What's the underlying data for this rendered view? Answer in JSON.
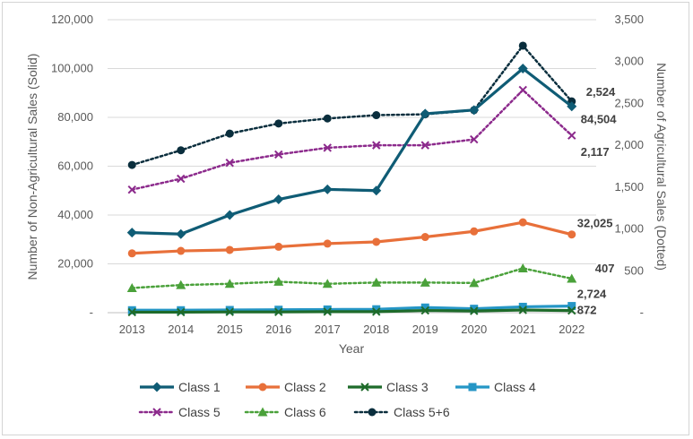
{
  "chart_data": {
    "type": "line",
    "title": "",
    "xlabel": "Year",
    "ylabel_left": "Number of Non-Agricultural Sales (Solid)",
    "ylabel_right": "Number of Agricultural Sales (Dotted)",
    "x": [
      2013,
      2014,
      2015,
      2016,
      2017,
      2018,
      2019,
      2020,
      2021,
      2022
    ],
    "ylim_left": [
      0,
      120000
    ],
    "ylim_right": [
      0,
      3500
    ],
    "left_ticks": [
      "-",
      "20,000",
      "40,000",
      "60,000",
      "80,000",
      "100,000",
      "120,000"
    ],
    "right_ticks": [
      "-",
      "500",
      "1,000",
      "1,500",
      "2,000",
      "2,500",
      "3,000",
      "3,500"
    ],
    "grid": true,
    "legend_position": "bottom",
    "series": [
      {
        "name": "Class 1",
        "axis": "left",
        "style": "solid",
        "marker": "diamond",
        "color": "#0f5c75",
        "values": [
          32800,
          32200,
          40000,
          46400,
          50500,
          50000,
          81500,
          83000,
          100000,
          84504
        ]
      },
      {
        "name": "Class 2",
        "axis": "left",
        "style": "solid",
        "marker": "circle",
        "color": "#e8703a",
        "values": [
          24300,
          25300,
          25700,
          27000,
          28300,
          29000,
          31000,
          33300,
          37000,
          32025
        ]
      },
      {
        "name": "Class 3",
        "axis": "left",
        "style": "solid",
        "marker": "x",
        "color": "#1e6b2a",
        "values": [
          200,
          200,
          300,
          300,
          400,
          400,
          900,
          700,
          1100,
          872
        ]
      },
      {
        "name": "Class 4",
        "axis": "left",
        "style": "solid",
        "marker": "square",
        "color": "#2596c6",
        "values": [
          1000,
          1000,
          1100,
          1200,
          1300,
          1400,
          2100,
          1600,
          2400,
          2724
        ]
      },
      {
        "name": "Class 5",
        "axis": "right",
        "style": "dotted",
        "marker": "x",
        "color": "#8c2a8c",
        "values": [
          1470,
          1600,
          1790,
          1890,
          1970,
          2000,
          2000,
          2070,
          2660,
          2117
        ]
      },
      {
        "name": "Class 6",
        "axis": "right",
        "style": "dotted",
        "marker": "triangle",
        "color": "#4aa13a",
        "values": [
          295,
          330,
          345,
          370,
          345,
          360,
          360,
          355,
          530,
          407
        ]
      },
      {
        "name": "Class 5+6",
        "axis": "right",
        "style": "dotted",
        "marker": "circle",
        "color": "#0a2e3d",
        "values": [
          1765,
          1940,
          2140,
          2260,
          2320,
          2360,
          2370,
          2420,
          3190,
          2524
        ]
      }
    ],
    "annotations": [
      {
        "text": "2,524",
        "series": "Class 5+6",
        "index": 9
      },
      {
        "text": "84,504",
        "series": "Class 1",
        "index": 9
      },
      {
        "text": "2,117",
        "series": "Class 5",
        "index": 9
      },
      {
        "text": "32,025",
        "series": "Class 2",
        "index": 9
      },
      {
        "text": "407",
        "series": "Class 6",
        "index": 9
      },
      {
        "text": "2,724",
        "series": "Class 4",
        "index": 9
      },
      {
        "text": "872",
        "series": "Class 3",
        "index": 9
      }
    ]
  }
}
